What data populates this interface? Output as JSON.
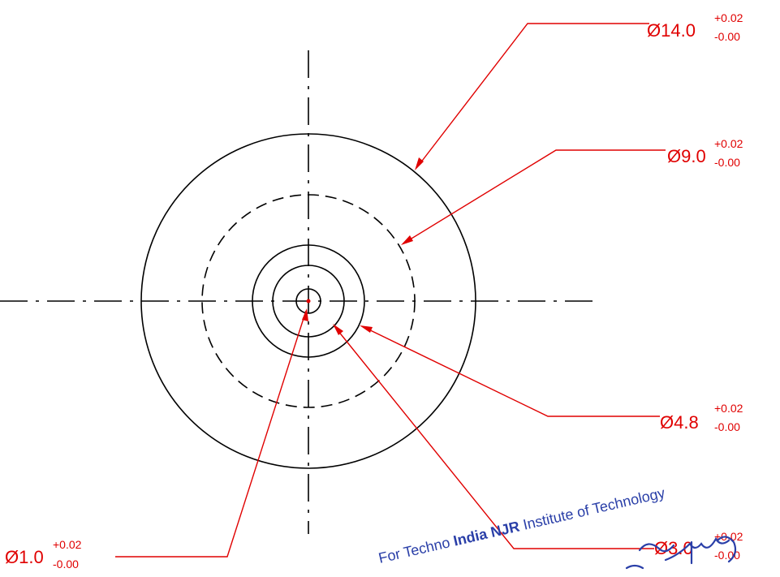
{
  "dimensions": [
    {
      "value": "Ø14.0",
      "upper": "+0.02",
      "lower": "-0.00"
    },
    {
      "value": "Ø9.0",
      "upper": "+0.02",
      "lower": "-0.00"
    },
    {
      "value": "Ø4.8",
      "upper": "+0.02",
      "lower": "-0.00"
    },
    {
      "value": "Ø3.0",
      "upper": "+0.02",
      "lower": "-0.00"
    },
    {
      "value": "Ø1.0",
      "upper": "+0.02",
      "lower": "-0.00"
    }
  ],
  "stamp": {
    "prefix": "For Techno ",
    "org": "India NJR",
    "suffix": " Institute of Technology"
  },
  "colors": {
    "dimension": "#e00000",
    "geometry": "#000000",
    "stamp": "#2a3fa8"
  }
}
